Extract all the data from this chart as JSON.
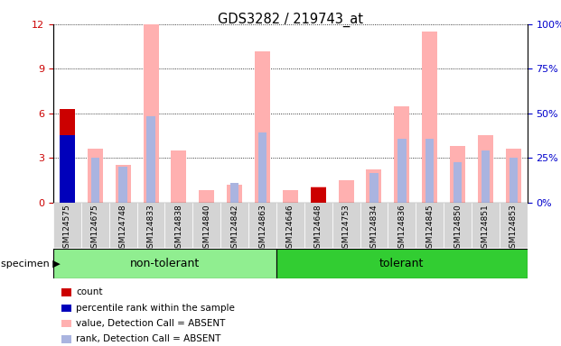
{
  "title": "GDS3282 / 219743_at",
  "samples": [
    "GSM124575",
    "GSM124675",
    "GSM124748",
    "GSM124833",
    "GSM124838",
    "GSM124840",
    "GSM124842",
    "GSM124863",
    "GSM124646",
    "GSM124648",
    "GSM124753",
    "GSM124834",
    "GSM124836",
    "GSM124845",
    "GSM124850",
    "GSM124851",
    "GSM124853"
  ],
  "groups": [
    {
      "name": "non-tolerant",
      "start": 0,
      "end": 8,
      "color": "#90EE90"
    },
    {
      "name": "tolerant",
      "start": 8,
      "end": 17,
      "color": "#32CD32"
    }
  ],
  "count_values": [
    6.3,
    0,
    0,
    0,
    0,
    0,
    0,
    0,
    0,
    1.0,
    0,
    0,
    0,
    0,
    0,
    0,
    0
  ],
  "rank_values": [
    4.5,
    0,
    0,
    0,
    0,
    0,
    0,
    0,
    0,
    0,
    0,
    0,
    0,
    0,
    0,
    0,
    0
  ],
  "value_absent": [
    0,
    3.6,
    2.5,
    12.0,
    3.5,
    0.8,
    1.2,
    10.2,
    0.8,
    1.1,
    1.5,
    2.2,
    6.5,
    11.5,
    3.8,
    4.5,
    3.6
  ],
  "rank_absent": [
    0,
    3.0,
    2.4,
    5.8,
    0,
    0,
    1.3,
    4.7,
    0,
    0,
    0,
    2.0,
    4.3,
    4.3,
    2.7,
    3.5,
    3.0
  ],
  "ylim_left": [
    0,
    12
  ],
  "ylim_right": [
    0,
    100
  ],
  "yticks_left": [
    0,
    3,
    6,
    9,
    12
  ],
  "yticks_right": [
    0,
    25,
    50,
    75,
    100
  ],
  "color_count": "#cc0000",
  "color_rank": "#0000bb",
  "color_value_absent": "#ffb0b0",
  "color_rank_absent": "#aab4e0",
  "legend_items": [
    {
      "label": "count",
      "color": "#cc0000"
    },
    {
      "label": "percentile rank within the sample",
      "color": "#0000bb"
    },
    {
      "label": "value, Detection Call = ABSENT",
      "color": "#ffb0b0"
    },
    {
      "label": "rank, Detection Call = ABSENT",
      "color": "#aab4e0"
    }
  ]
}
